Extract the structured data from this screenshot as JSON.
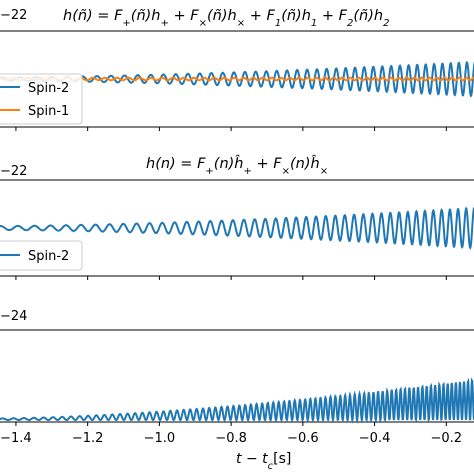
{
  "chart_data": {
    "type": "line",
    "shared_xlabel": "t − t_c[s]",
    "x_ticks": [
      -1.4,
      -1.2,
      -1.0,
      -0.8,
      -0.6,
      -0.4,
      -0.2
    ],
    "x_tick_labels": [
      "−1.4",
      "−1.2",
      "−1.0",
      "−0.8",
      "−0.6",
      "−0.4",
      "−0.2"
    ],
    "xlim": [
      -1.45,
      -0.12
    ],
    "panels": [
      {
        "title": "h(ñ) = F₊(ñ)h₊ + F×(ñ)h× + F₁(ñ)h₁ + F₂(ñ)h₂",
        "title_parts": {
          "lhs": "h(ñ) = ",
          "t1": "F",
          "t1s": "+",
          "t1a": "(ñ)h",
          "t1as": "+",
          "t2": " + F",
          "t2s": "×",
          "t2a": "(ñ)h",
          "t2as": "×",
          "t3": " + F",
          "t3s": "1",
          "t3a": "(ñ)h",
          "t3as": "1",
          "t4": " + F",
          "t4s": "2",
          "t4a": "(ñ)h",
          "t4as": "2"
        },
        "offset_label": "−22",
        "legend": [
          "Spin-2",
          "Spin-1"
        ],
        "series": [
          {
            "name": "Spin-2",
            "color": "#1f77b4",
            "amp_start": 0.1,
            "amp_end": 1.0,
            "freq_start": 20,
            "freq_end": 45,
            "phase": 0
          },
          {
            "name": "Spin-1",
            "color": "#ff7f0e",
            "amp_start": 0.07,
            "amp_end": 0.08,
            "freq_start": 24,
            "freq_end": 50,
            "phase": 1.2
          }
        ]
      },
      {
        "title": "h(n) = F₊(n)ĥ₊ + F×(n)ĥ×",
        "title_parts": {
          "lhs": "h(n) = ",
          "t1": "F",
          "t1s": "+",
          "t1a": "(n)ĥ",
          "t1as": "+",
          "t2": " + F",
          "t2s": "×",
          "t2a": "(n)ĥ",
          "t2as": "×"
        },
        "offset_label": "−22",
        "legend": [
          "Spin-2"
        ],
        "series": [
          {
            "name": "Spin-2",
            "color": "#1f77b4",
            "amp_start": 0.1,
            "amp_end": 1.0,
            "freq_start": 20,
            "freq_end": 45,
            "phase": 0.6
          }
        ]
      },
      {
        "title": "",
        "offset_label": "−24",
        "legend": [],
        "series": [
          {
            "name": "",
            "color": "#1f77b4",
            "amp_start": 0.04,
            "amp_end": 1.0,
            "freq_start": 32,
            "freq_end": 90,
            "phase": 0.3,
            "one_sided": true
          }
        ]
      }
    ]
  }
}
